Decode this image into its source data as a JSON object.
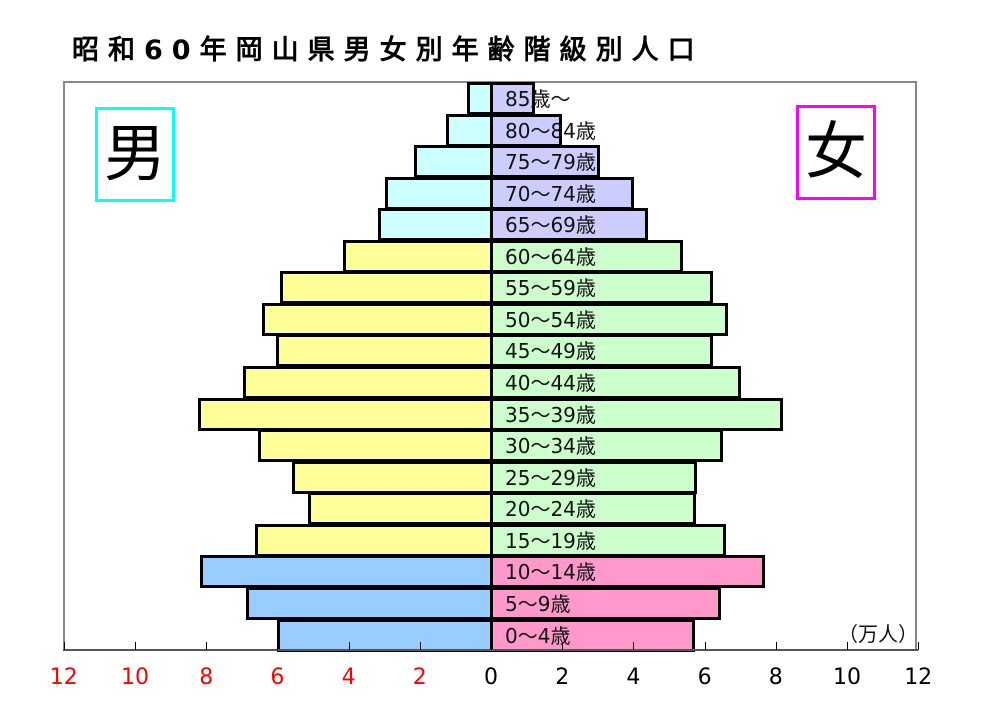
{
  "title": "昭和60年岡山県男女別年齢階級別人口",
  "male_label": "男",
  "female_label": "女",
  "unit_label": "（万人）",
  "colors": {
    "male_elderly": "#ccffff",
    "male_working": "#ffff99",
    "male_young": "#99ccff",
    "female_elderly": "#ccccff",
    "female_working": "#ccffcc",
    "female_young": "#ff99cc",
    "male_box_border": "#00ffff",
    "female_box_border": "#ff00ff",
    "left_axis_tick_color": "#ff0000",
    "right_axis_tick_color": "#000000"
  },
  "chart_data": {
    "type": "bar",
    "orientation": "horizontal-population-pyramid",
    "title": "昭和60年岡山県男女別年齢階級別人口",
    "xlabel": "（万人）",
    "xlim": [
      -12,
      12
    ],
    "x_ticks_left": [
      "12",
      "10",
      "8",
      "6",
      "4",
      "2"
    ],
    "x_ticks_right": [
      "0",
      "2",
      "4",
      "6",
      "8",
      "10",
      "12"
    ],
    "categories": [
      "85歳～",
      "80～84歳",
      "75～79歳",
      "70～74歳",
      "65～69歳",
      "60～64歳",
      "55～59歳",
      "50～54歳",
      "45～49歳",
      "40～44歳",
      "35～39歳",
      "30～34歳",
      "25～29歳",
      "20～24歳",
      "15～19歳",
      "10～14歳",
      "5～9歳",
      "0～4歳"
    ],
    "series": [
      {
        "name": "男",
        "values": [
          0.67,
          1.26,
          2.16,
          2.98,
          3.17,
          4.16,
          5.93,
          6.43,
          6.04,
          6.97,
          8.23,
          6.54,
          5.59,
          5.14,
          6.63,
          8.18,
          6.88,
          6.01
        ]
      },
      {
        "name": "女",
        "values": [
          1.24,
          2.0,
          3.06,
          4.02,
          4.41,
          5.39,
          6.24,
          6.66,
          6.24,
          7.02,
          8.2,
          6.52,
          5.79,
          5.76,
          6.6,
          7.7,
          6.46,
          5.73
        ]
      }
    ],
    "groups": {
      "elderly": [
        "85歳～",
        "80～84歳",
        "75～79歳",
        "70～74歳",
        "65～69歳"
      ],
      "working": [
        "60～64歳",
        "55～59歳",
        "50～54歳",
        "45～49歳",
        "40～44歳",
        "35～39歳",
        "30～34歳",
        "25～29歳",
        "20～24歳",
        "15～19歳"
      ],
      "young": [
        "10～14歳",
        "5～9歳",
        "0～4歳"
      ]
    },
    "legend": [
      "男",
      "女"
    ],
    "grid": false
  }
}
